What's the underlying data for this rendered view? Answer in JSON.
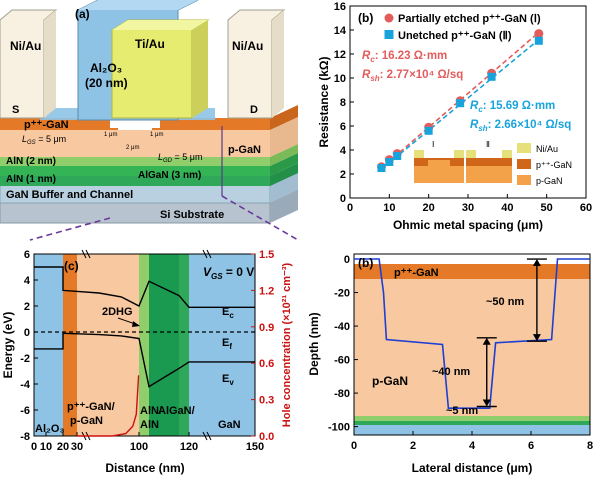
{
  "colors": {
    "niau": "#f8f0e0",
    "al2o3": "#8ec3e6",
    "tiau": "#e6ec70",
    "pgan_pp": "#e47a28",
    "pgan": "#f8c8a0",
    "aln": "#55b855",
    "algan": "#1a9a50",
    "buffer": "#b8d0e0",
    "si": "#b7c4d0",
    "red": "#cc1111",
    "blue": "#1c3fd4",
    "cyan": "#19a3dd",
    "salmon": "#e25c5c",
    "dashed_purple": "#6a3a9a"
  },
  "device": {
    "panel_label": "(a)",
    "labels": {
      "niau_left": "Ni/Au",
      "niau_right": "Ni/Au",
      "tiau": "Ti/Au",
      "al2o3": "Al₂O₃",
      "al2o3_thick": "(20 nm)",
      "source": "S",
      "drain": "D",
      "pppgan": "p⁺⁺-GaN",
      "lgs": "L",
      "lgs_sub": "GS",
      "lgs_val": " = 5 μm",
      "lgd": "L",
      "lgd_sub": "GD",
      "lgd_val": " = 5 μm",
      "one_um_left": "1 μm",
      "one_um_right": "1 μm",
      "two_um": "2 μm",
      "pgan": "p-GaN",
      "aln_top": "AlN (2 nm)",
      "algan": "AlGaN (3 nm)",
      "aln_bot": "AlN (1 nm)",
      "buffer": "GaN Buffer and Channel",
      "si": "Si Substrate"
    }
  },
  "chart_data": [
    {
      "id": "panel-b-top",
      "type": "scatter",
      "panel_label": "(b)",
      "xlabel": "Ohmic metal spacing (μm)",
      "ylabel": "Resistance (kΩ)",
      "xlim": [
        0,
        60
      ],
      "ylim": [
        0,
        16
      ],
      "xticks": [
        0,
        10,
        20,
        30,
        40,
        50,
        60
      ],
      "yticks": [
        0,
        2,
        4,
        6,
        8,
        10,
        12,
        14,
        16
      ],
      "series": [
        {
          "name": "Partially etched p⁺⁺-GaN (Ⅰ)",
          "marker": "circle",
          "x": [
            8,
            10,
            12,
            20,
            28,
            36,
            48
          ],
          "y": [
            2.6,
            3.2,
            3.7,
            5.9,
            8.1,
            10.4,
            13.7
          ],
          "fit": [
            [
              8,
              2.5
            ],
            [
              48,
              13.8
            ]
          ]
        },
        {
          "name": "Unetched p⁺⁺-GaN (Ⅱ)",
          "marker": "square",
          "x": [
            8,
            10,
            12,
            20,
            28,
            36,
            48
          ],
          "y": [
            2.5,
            3.0,
            3.5,
            5.6,
            7.9,
            10.1,
            13.1
          ],
          "fit": [
            [
              8,
              2.4
            ],
            [
              48,
              13.2
            ]
          ]
        }
      ],
      "annotations": {
        "rc1": "R",
        "rc1_sub": "c",
        "rc1_val": ": 16.23 Ω·mm",
        "rsh1": "R",
        "rsh1_sub": "sh",
        "rsh1_val": ": 2.77×10⁴ Ω/sq",
        "rc2": "R",
        "rc2_sub": "c",
        "rc2_val": ": 15.69 Ω·mm",
        "rsh2": "R",
        "rsh2_sub": "sh",
        "rsh2_val": ": 2.66×10⁴ Ω/sq",
        "inset_I": "Ⅰ",
        "inset_II": "Ⅱ",
        "inset_legend": [
          "Ni/Au",
          "p⁺⁺-GaN",
          "p-GaN"
        ]
      }
    },
    {
      "id": "panel-c",
      "type": "line",
      "panel_label": "(c)",
      "xlabel": "Distance (nm)",
      "ylabel": "Energy (eV)",
      "y2label": "Hole concentration (×10²¹ cm⁻³)",
      "ylim": [
        -8,
        6
      ],
      "y2lim": [
        0,
        1.5
      ],
      "yticks": [
        -8,
        -6,
        -4,
        -2,
        0,
        2,
        4,
        6
      ],
      "y2ticks": [
        0.0,
        0.3,
        0.6,
        0.9,
        1.2,
        1.5
      ],
      "xtick_labels": [
        "0",
        "10",
        "20",
        "30",
        "100",
        "120",
        "150"
      ],
      "annotation_vgs": "V",
      "annotation_vgs_sub": "GS",
      "annotation_vgs_val": " = 0 V",
      "annotation_2dhg": "2DHG",
      "band_labels": {
        "ec": "E",
        "ec_sub": "c",
        "ef": "E",
        "ef_sub": "f",
        "ev": "E",
        "ev_sub": "v"
      },
      "region_labels": {
        "al2o3": "Al₂O₃",
        "ppgan_1": "p⁺⁺-GaN/",
        "ppgan_2": "p-GaN",
        "aln_1": "AlN/",
        "aln_2": "AlN",
        "algan": "AlGaN/",
        "gan": "GaN"
      },
      "Ec": [
        [
          0,
          5.0
        ],
        [
          20,
          5.0
        ],
        [
          20,
          3.2
        ],
        [
          55,
          3.0
        ],
        [
          80,
          2.7
        ],
        [
          100,
          2.0
        ],
        [
          102,
          3.9
        ],
        [
          118,
          2.8
        ],
        [
          120,
          1.9
        ],
        [
          150,
          1.9
        ]
      ],
      "Ev": [
        [
          0,
          -1.3
        ],
        [
          20,
          -1.3
        ],
        [
          20,
          -0.1
        ],
        [
          55,
          -0.2
        ],
        [
          80,
          -0.3
        ],
        [
          100,
          -0.5
        ],
        [
          102,
          -4.2
        ],
        [
          118,
          -2.8
        ],
        [
          120,
          -2.3
        ],
        [
          150,
          -2.3
        ]
      ],
      "Ef": 0,
      "hole_conc": [
        [
          30,
          0.0
        ],
        [
          70,
          0.0
        ],
        [
          85,
          0.02
        ],
        [
          93,
          0.08
        ],
        [
          97,
          0.18
        ],
        [
          99.5,
          0.5
        ]
      ]
    },
    {
      "id": "panel-b-bottom",
      "type": "line",
      "panel_label": "(b)",
      "xlabel": "Lateral distance (μm)",
      "ylabel": "Depth (nm)",
      "xlim": [
        0,
        8
      ],
      "ylim": [
        -105,
        3
      ],
      "xticks": [
        0,
        2,
        4,
        6,
        8
      ],
      "yticks": [
        0,
        -20,
        -40,
        -60,
        -80,
        -100
      ],
      "profile": [
        [
          0,
          0
        ],
        [
          0.85,
          0
        ],
        [
          1.0,
          -20
        ],
        [
          1.1,
          -48
        ],
        [
          3.0,
          -51
        ],
        [
          3.2,
          -89
        ],
        [
          4.6,
          -89
        ],
        [
          4.8,
          -50
        ],
        [
          6.7,
          -48
        ],
        [
          6.9,
          0
        ],
        [
          8,
          0
        ]
      ],
      "region_labels": {
        "pppgan": "p⁺⁺-GaN",
        "pgan": "p-GaN"
      },
      "dimension_labels": {
        "d50": "~50 nm",
        "d40": "~40 nm",
        "d5": "~5 nm"
      }
    }
  ]
}
